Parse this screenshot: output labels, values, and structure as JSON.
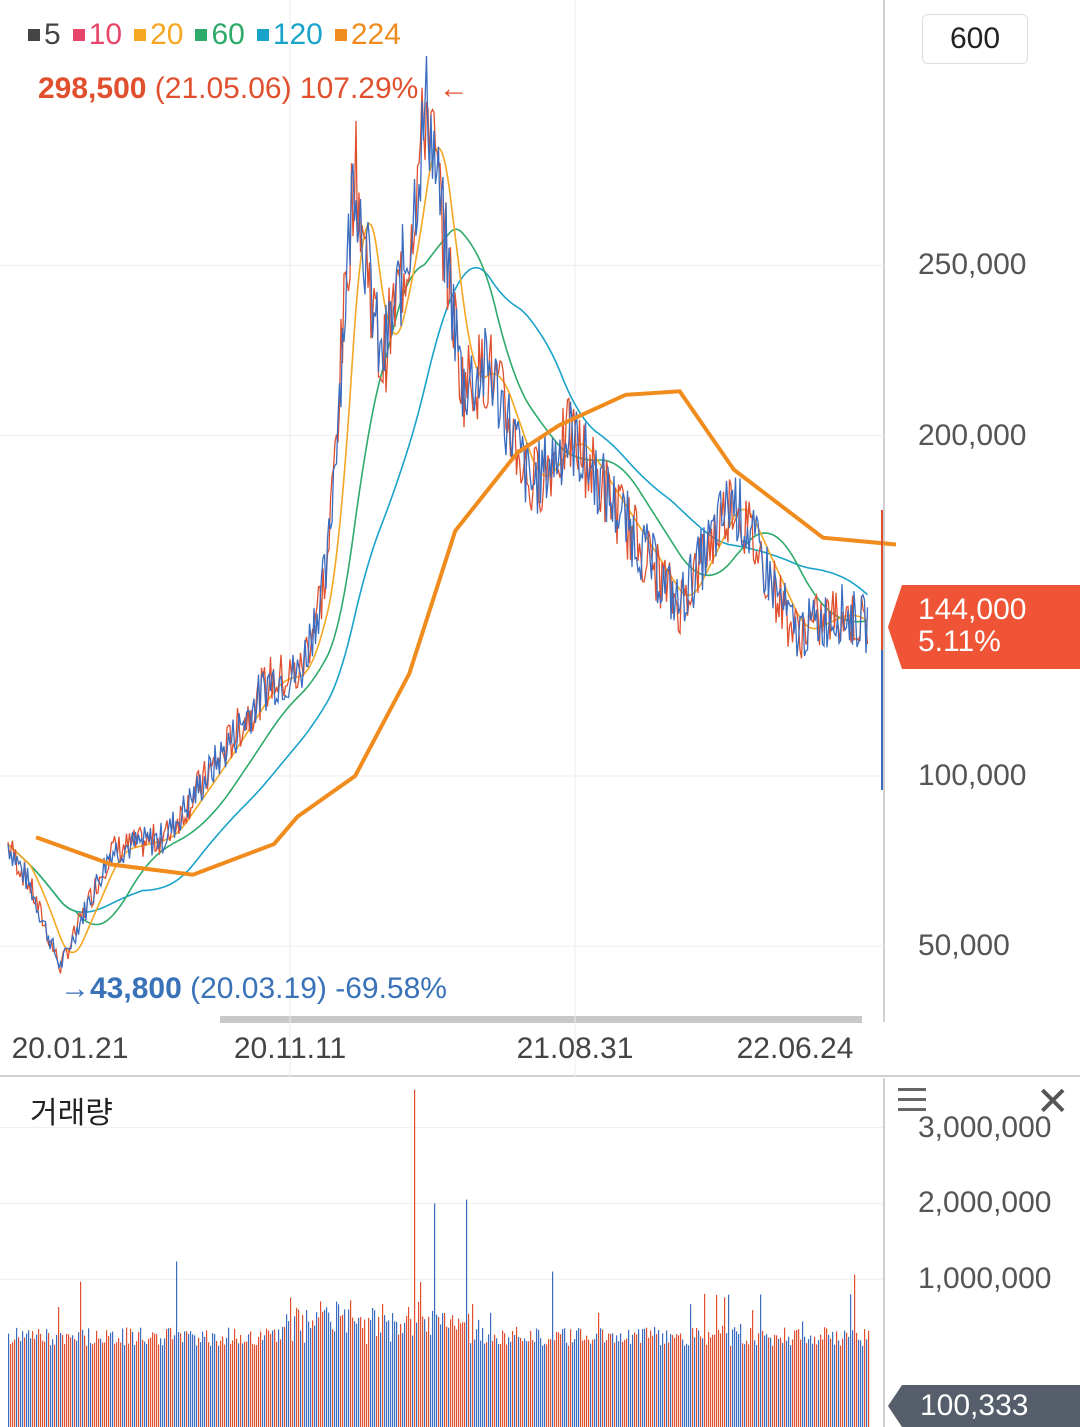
{
  "legend": [
    {
      "label": "5",
      "color": "#444444"
    },
    {
      "label": "10",
      "color": "#e8456a"
    },
    {
      "label": "20",
      "color": "#f5a623"
    },
    {
      "label": "60",
      "color": "#2eaa6a"
    },
    {
      "label": "120",
      "color": "#1aa3c9"
    },
    {
      "label": "224",
      "color": "#f08c1e"
    }
  ],
  "high_annotation": {
    "value": "298,500",
    "date": "(21.05.06)",
    "pct": "107.29%",
    "arrow": "←",
    "color": "#e0502e"
  },
  "low_annotation": {
    "arrow": "→",
    "value": "43,800",
    "date": "(20.03.19)",
    "pct": "-69.58%",
    "color": "#3a72b8"
  },
  "period_button": "600",
  "price_tag": {
    "price": "144,000",
    "pct": "5.11%"
  },
  "volume": {
    "title": "거래량",
    "tag": "100,333",
    "menu_icon": "hamburger-menu-icon",
    "close_icon": "close-icon",
    "close_glyph": "✕"
  },
  "chart_data": [
    {
      "type": "line",
      "subtype": "candlestick-with-moving-averages",
      "y_tick_labels": [
        "250,000",
        "200,000",
        "100,000",
        "50,000"
      ],
      "y_ticks": [
        250000,
        200000,
        100000,
        50000
      ],
      "ylim": [
        28000,
        300000
      ],
      "x_tick_labels": [
        "20.01.21",
        "20.11.11",
        "21.08.31",
        "22.06.24"
      ],
      "grid": true,
      "legend_placement": "top-left",
      "price_series": {
        "x": [
          "20.01.21",
          "20.02",
          "20.03.19",
          "20.05",
          "20.07",
          "20.09",
          "20.11.11",
          "20.12",
          "21.01",
          "21.02",
          "21.03",
          "21.04",
          "21.05.06",
          "21.06",
          "21.07",
          "21.08.31",
          "21.10",
          "21.12",
          "22.02",
          "22.04",
          "22.06.24",
          "22.08",
          "22.09"
        ],
        "values": [
          80000,
          68000,
          43800,
          78000,
          82000,
          105000,
          128000,
          130000,
          160000,
          280000,
          220000,
          255000,
          298500,
          215000,
          220000,
          185000,
          200000,
          175000,
          150000,
          182000,
          142000,
          148000,
          144000
        ]
      },
      "ma224": {
        "x": [
          "20.01.21",
          "20.04",
          "20.07",
          "20.10",
          "20.11.11",
          "21.01",
          "21.03",
          "21.05.06",
          "21.07",
          "21.08.31",
          "21.11",
          "22.01",
          "22.03",
          "22.06.24",
          "22.09"
        ],
        "values": [
          82000,
          74000,
          71000,
          80000,
          88000,
          100000,
          130000,
          172000,
          195000,
          203000,
          212000,
          213000,
          190000,
          170000,
          168000
        ]
      },
      "current": {
        "price": 144000,
        "pct": 5.11
      },
      "high": {
        "value": 298500,
        "date": "21.05.06",
        "pct": 107.29
      },
      "low": {
        "value": 43800,
        "date": "20.03.19",
        "pct": -69.58
      }
    },
    {
      "type": "bar",
      "y_tick_labels": [
        "3,000,000",
        "2,000,000",
        "1,000,000"
      ],
      "y_ticks": [
        3000000,
        2000000,
        1000000
      ],
      "ylim": [
        0,
        3600000
      ],
      "grid": true,
      "notable_spikes": {
        "x": [
          "21.02",
          "21.03",
          "21.04"
        ],
        "values": [
          3500000,
          2000000,
          2050000
        ]
      },
      "last_value": 100333
    }
  ]
}
